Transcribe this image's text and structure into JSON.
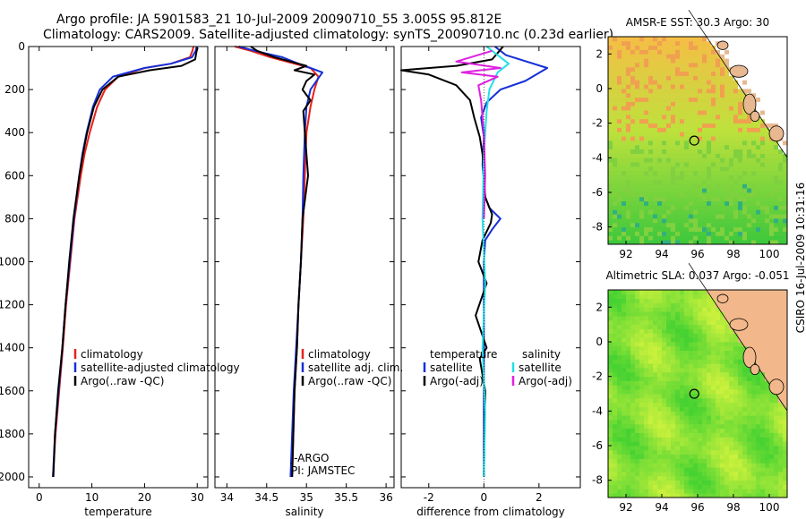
{
  "title_line1": "Argo profile: JA 5901583_21 10-Jul-2009 20090710_55 3.005S 95.812E",
  "title_line2": "Climatology: CARS2009. Satellite-adjusted climatology: synTS_20090710.nc (0.23d earlier)",
  "side_label": "CSIRO 16-Jul-2009 10:31:16",
  "colors": {
    "red": "#e8201a",
    "blue": "#1530d8",
    "black": "#000000",
    "cyan": "#20e0e8",
    "magenta": "#e020e0"
  },
  "chart_data": [
    {
      "type": "line",
      "xlabel": "temperature",
      "xlim": [
        -2,
        32
      ],
      "ylim": [
        2050,
        0
      ],
      "xticks": [
        "0",
        "10",
        "20",
        "30"
      ],
      "xtick_values": [
        0,
        10,
        20,
        30
      ],
      "yticks": [
        "0",
        "200",
        "400",
        "600",
        "800",
        "1000",
        "1200",
        "1400",
        "1600",
        "1800",
        "2000"
      ],
      "ytick_values": [
        0,
        200,
        400,
        600,
        800,
        1000,
        1200,
        1400,
        1600,
        1800,
        2000
      ],
      "legend": [
        "climatology",
        "satellite-adjusted climatology",
        "Argo(..raw -QC)"
      ],
      "series": [
        {
          "name": "climatology",
          "color": "red",
          "x": [
            29.3,
            29.1,
            28.6,
            25,
            20,
            15,
            12.5,
            11,
            9.6,
            8.6,
            7.9,
            6.7,
            5.9,
            5.1,
            4.5,
            3.8,
            3.1,
            2.6
          ],
          "y": [
            0,
            20,
            50,
            80,
            100,
            140,
            200,
            280,
            400,
            500,
            600,
            800,
            1000,
            1200,
            1400,
            1600,
            1800,
            2000
          ]
        },
        {
          "name": "satellite-adjusted climatology",
          "color": "blue",
          "x": [
            29.9,
            29.7,
            29,
            25,
            20,
            14,
            11.5,
            10.2,
            9,
            8.2,
            7.6,
            6.6,
            5.8,
            5.0,
            4.4,
            3.7,
            3.0,
            2.6
          ],
          "y": [
            0,
            20,
            50,
            80,
            100,
            140,
            200,
            280,
            400,
            500,
            600,
            800,
            1000,
            1200,
            1400,
            1600,
            1800,
            2000
          ]
        },
        {
          "name": "Argo(..raw -QC)",
          "color": "black",
          "x": [
            30.1,
            29.9,
            29.6,
            27,
            21,
            15,
            12,
            10.4,
            9.1,
            8.3,
            7.6,
            6.5,
            5.7,
            5.0,
            4.4,
            3.6,
            3.0,
            2.7
          ],
          "y": [
            5,
            20,
            60,
            90,
            110,
            140,
            200,
            280,
            400,
            500,
            600,
            800,
            1000,
            1200,
            1400,
            1600,
            1800,
            2000
          ]
        }
      ]
    },
    {
      "type": "line",
      "xlabel": "salinity",
      "xlim": [
        33.85,
        36.1
      ],
      "ylim": [
        2050,
        0
      ],
      "xticks": [
        "34",
        "34.5",
        "35",
        "35.5",
        "36"
      ],
      "xtick_values": [
        34,
        34.5,
        35,
        35.5,
        36
      ],
      "legend": [
        "climatology",
        "satellite adj. clim.",
        "Argo(..raw -QC)"
      ],
      "annotations": [
        "J-ARGO",
        "PI: JAMSTEC"
      ],
      "series": [
        {
          "name": "climatology",
          "color": "red",
          "x": [
            34.1,
            34.3,
            34.55,
            34.85,
            35.05,
            35.15,
            35.1,
            35.05,
            35.0,
            34.98,
            34.96,
            34.93,
            34.9,
            34.88,
            34.85,
            34.82
          ],
          "y": [
            0,
            20,
            50,
            80,
            100,
            140,
            200,
            280,
            400,
            600,
            800,
            1000,
            1200,
            1400,
            1600,
            2000
          ]
        },
        {
          "name": "satellite adj. clim.",
          "color": "blue",
          "x": [
            34.15,
            34.35,
            34.7,
            34.9,
            35.05,
            35.2,
            35.05,
            35.0,
            34.98,
            34.96,
            34.95,
            34.93,
            34.9,
            34.87,
            34.84,
            34.8
          ],
          "y": [
            0,
            20,
            50,
            80,
            100,
            120,
            200,
            280,
            400,
            600,
            800,
            1000,
            1200,
            1400,
            1600,
            2000
          ]
        },
        {
          "name": "Argo(..raw -QC)",
          "color": "black",
          "x": [
            34.3,
            34.38,
            34.6,
            34.8,
            35.0,
            34.85,
            35.1,
            35.0,
            34.95,
            35.05,
            34.96,
            34.98,
            35.02,
            34.95,
            34.93,
            34.9,
            34.88,
            34.85,
            34.82
          ],
          "y": [
            0,
            20,
            50,
            70,
            90,
            110,
            130,
            160,
            200,
            250,
            300,
            400,
            600,
            800,
            1000,
            1200,
            1400,
            1600,
            2000
          ]
        }
      ]
    },
    {
      "type": "line",
      "xlabel": "difference from climatology",
      "xlim": [
        -3,
        3.5
      ],
      "ylim": [
        2050,
        0
      ],
      "xticks": [
        "-2",
        "0",
        "2"
      ],
      "xtick_values": [
        -2,
        0,
        2
      ],
      "legend_titles": [
        "temperature",
        "salinity"
      ],
      "legend": [
        "satellite",
        "Argo(-adj)",
        "satellite",
        "Argo(-adj)"
      ],
      "series": [
        {
          "name": "temperature satellite",
          "color": "blue",
          "x": [
            0.4,
            0.8,
            2.3,
            1.5,
            0.6,
            0.1,
            -0.1,
            0,
            -0.05,
            0.05,
            0.2,
            0.6,
            0.3,
            0.05,
            0,
            0,
            0,
            0
          ],
          "y": [
            0,
            40,
            100,
            160,
            200,
            260,
            330,
            420,
            550,
            700,
            750,
            800,
            850,
            900,
            1000,
            1200,
            1600,
            2000
          ]
        },
        {
          "name": "temperature Argo(-adj)",
          "color": "black",
          "x": [
            0.7,
            0.5,
            0.3,
            -1,
            -3,
            -2,
            -1.0,
            -0.5,
            -0.35,
            -0.15,
            -0.05,
            0,
            0.05,
            0.3,
            0.25,
            -0.05,
            -0.2,
            0.1,
            -0.3,
            0.1,
            -0.15,
            0.05,
            0
          ],
          "y": [
            0,
            30,
            60,
            90,
            110,
            130,
            180,
            250,
            330,
            420,
            500,
            600,
            700,
            780,
            820,
            900,
            1000,
            1100,
            1250,
            1400,
            1450,
            1600,
            2000
          ]
        },
        {
          "name": "salinity satellite",
          "color": "cyan",
          "x": [
            0.1,
            0.9,
            0.5,
            0.2,
            0.1,
            0,
            -0.05,
            0.05,
            -0.05,
            0.05,
            0
          ],
          "y": [
            0,
            80,
            120,
            200,
            300,
            500,
            800,
            1100,
            1400,
            1700,
            2000
          ]
        },
        {
          "name": "salinity Argo(-adj)",
          "color": "magenta",
          "x": [
            0.3,
            -1.0,
            0.6,
            -0.8,
            0.5,
            -0.2,
            -0.1,
            0,
            0.05,
            0
          ],
          "y": [
            20,
            70,
            100,
            120,
            140,
            180,
            250,
            400,
            600,
            800
          ]
        }
      ]
    },
    {
      "type": "heatmap",
      "title": "AMSR-E SST: 30.3 Argo: 30",
      "xlim": [
        91,
        101
      ],
      "ylim": [
        -9,
        3
      ],
      "xticks": [
        "92",
        "94",
        "96",
        "98",
        "100"
      ],
      "xtick_values": [
        92,
        94,
        96,
        98,
        100
      ],
      "yticks": [
        "2",
        "0",
        "-2",
        "-4",
        "-6",
        "-8"
      ],
      "ytick_values": [
        2,
        0,
        -2,
        -4,
        -6,
        -8
      ],
      "marker": {
        "lon": 95.812,
        "lat": -3.005
      }
    },
    {
      "type": "heatmap",
      "title": "Altimetric SLA: 0.037 Argo: -0.051",
      "xlim": [
        91,
        101
      ],
      "ylim": [
        -9,
        3
      ],
      "xticks": [
        "92",
        "94",
        "96",
        "98",
        "100"
      ],
      "xtick_values": [
        92,
        94,
        96,
        98,
        100
      ],
      "yticks": [
        "2",
        "0",
        "-2",
        "-4",
        "-6",
        "-8"
      ],
      "ytick_values": [
        2,
        0,
        -2,
        -4,
        -6,
        -8
      ],
      "marker": {
        "lon": 95.812,
        "lat": -3.005
      }
    }
  ]
}
